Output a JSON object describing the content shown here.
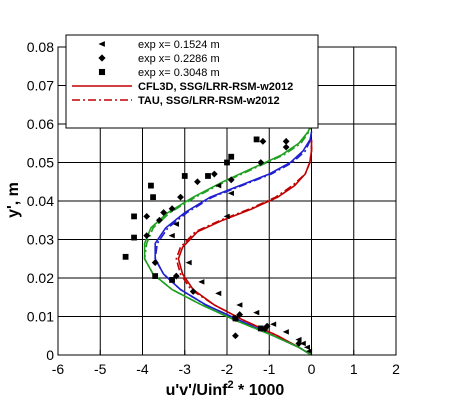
{
  "chart_data": {
    "type": "line",
    "xlabel": "u'v'/Uinf",
    "xlabel_sup": "2",
    "xlabel_suffix": " * 1000",
    "ylabel": "y', m",
    "xlim": [
      -6,
      2
    ],
    "ylim": [
      0,
      0.08
    ],
    "xticks": [
      "-6",
      "-5",
      "-4",
      "-3",
      "-2",
      "-1",
      "0",
      "1",
      "2"
    ],
    "yticks": [
      "0",
      "0.01",
      "0.02",
      "0.03",
      "0.04",
      "0.05",
      "0.06",
      "0.07",
      "0.08"
    ],
    "grid": true,
    "legend_position": "top",
    "experiments": [
      {
        "name": "exp x= 0.1524 m",
        "marker": "triangle-left",
        "points": [
          [
            -0.05,
            0.001
          ],
          [
            -0.1,
            0.002
          ],
          [
            -0.2,
            0.003
          ],
          [
            -0.3,
            0.004
          ],
          [
            -0.6,
            0.006
          ],
          [
            -0.9,
            0.008
          ],
          [
            -1.3,
            0.011
          ],
          [
            -1.7,
            0.013
          ],
          [
            -2.2,
            0.016
          ],
          [
            -2.6,
            0.019
          ],
          [
            -2.9,
            0.024
          ],
          [
            -3.3,
            0.031
          ],
          [
            -3.2,
            0.034
          ],
          [
            -2.0,
            0.036
          ],
          [
            -1.9,
            0.042
          ],
          [
            -2.2,
            0.044
          ]
        ]
      },
      {
        "name": "exp x= 0.2286 m",
        "marker": "diamond",
        "points": [
          [
            -0.3,
            0.003
          ],
          [
            -1.7,
            0.0105
          ],
          [
            -1.8,
            0.0095
          ],
          [
            -1.8,
            0.005
          ],
          [
            -1.05,
            0.0075
          ],
          [
            -1.1,
            0.0068
          ],
          [
            -2.8,
            0.0165
          ],
          [
            -3.2,
            0.0205
          ],
          [
            -3.7,
            0.024
          ],
          [
            -3.9,
            0.031
          ],
          [
            -3.9,
            0.036
          ],
          [
            -3.5,
            0.037
          ],
          [
            -3.6,
            0.035
          ],
          [
            -3.3,
            0.038
          ],
          [
            -3.1,
            0.041
          ],
          [
            -2.7,
            0.045
          ],
          [
            -1.9,
            0.0455
          ],
          [
            -2.3,
            0.047
          ],
          [
            -1.2,
            0.05
          ],
          [
            -0.6,
            0.054
          ],
          [
            -1.15,
            0.0555
          ],
          [
            -0.6,
            0.0555
          ]
        ]
      },
      {
        "name": "exp x= 0.3048 m",
        "marker": "square",
        "points": [
          [
            -1.8,
            0.0095
          ],
          [
            -1.2,
            0.0069
          ],
          [
            -3.3,
            0.0195
          ],
          [
            -3.7,
            0.0205
          ],
          [
            -4.4,
            0.0255
          ],
          [
            -4.2,
            0.0305
          ],
          [
            -4.2,
            0.036
          ],
          [
            -3.75,
            0.041
          ],
          [
            -3.8,
            0.044
          ],
          [
            -3.0,
            0.0465
          ],
          [
            -2.45,
            0.0465
          ],
          [
            -2.0,
            0.05
          ],
          [
            -1.9,
            0.0515
          ],
          [
            -1.3,
            0.056
          ]
        ]
      }
    ],
    "series": [
      {
        "name": "CFL3D, SSG/LRR-RSM-w2012",
        "color": "#c00000",
        "dash": "solid",
        "points": [
          [
            0,
            0
          ],
          [
            -0.3,
            0.002
          ],
          [
            -0.8,
            0.005
          ],
          [
            -1.6,
            0.009
          ],
          [
            -2.3,
            0.013
          ],
          [
            -2.8,
            0.017
          ],
          [
            -3.05,
            0.021
          ],
          [
            -3.15,
            0.025
          ],
          [
            -3.05,
            0.028
          ],
          [
            -2.7,
            0.032
          ],
          [
            -2.1,
            0.035
          ],
          [
            -1.4,
            0.038
          ],
          [
            -0.8,
            0.041
          ],
          [
            -0.4,
            0.044
          ],
          [
            -0.15,
            0.047
          ],
          [
            -0.04,
            0.05
          ],
          [
            0,
            0.053
          ],
          [
            0,
            0.056
          ]
        ]
      },
      {
        "name": "TAU, SSG/LRR-RSM-w2012",
        "color": "#c00000",
        "dash": "dashdot",
        "points": [
          [
            0,
            0
          ],
          [
            -0.3,
            0.002
          ],
          [
            -0.8,
            0.005
          ],
          [
            -1.6,
            0.009
          ],
          [
            -2.3,
            0.013
          ],
          [
            -2.85,
            0.017
          ],
          [
            -3.1,
            0.021
          ],
          [
            -3.2,
            0.025
          ],
          [
            -3.1,
            0.028
          ],
          [
            -2.75,
            0.032
          ],
          [
            -2.15,
            0.035
          ],
          [
            -1.45,
            0.038
          ],
          [
            -0.85,
            0.041
          ],
          [
            -0.45,
            0.044
          ],
          [
            -0.15,
            0.047
          ],
          [
            -0.04,
            0.05
          ],
          [
            0,
            0.053
          ],
          [
            0,
            0.056
          ]
        ]
      },
      {
        "color": "#2020d0",
        "dash": "solid",
        "points": [
          [
            0,
            0
          ],
          [
            -0.3,
            0.002
          ],
          [
            -0.9,
            0.005
          ],
          [
            -1.7,
            0.009
          ],
          [
            -2.5,
            0.013
          ],
          [
            -3.1,
            0.017
          ],
          [
            -3.5,
            0.021
          ],
          [
            -3.7,
            0.025
          ],
          [
            -3.7,
            0.029
          ],
          [
            -3.45,
            0.033
          ],
          [
            -3.0,
            0.037
          ],
          [
            -2.4,
            0.041
          ],
          [
            -1.7,
            0.044
          ],
          [
            -1.0,
            0.047
          ],
          [
            -0.5,
            0.05
          ],
          [
            -0.2,
            0.053
          ],
          [
            -0.03,
            0.056
          ],
          [
            0,
            0.058
          ]
        ]
      },
      {
        "color": "#2020d0",
        "dash": "dashdot",
        "points": [
          [
            0,
            0
          ],
          [
            -0.3,
            0.002
          ],
          [
            -0.9,
            0.005
          ],
          [
            -1.7,
            0.009
          ],
          [
            -2.5,
            0.013
          ],
          [
            -3.1,
            0.017
          ],
          [
            -3.5,
            0.021
          ],
          [
            -3.7,
            0.025
          ],
          [
            -3.65,
            0.029
          ],
          [
            -3.4,
            0.033
          ],
          [
            -2.95,
            0.037
          ],
          [
            -2.35,
            0.041
          ],
          [
            -1.65,
            0.044
          ],
          [
            -0.95,
            0.047
          ],
          [
            -0.45,
            0.05
          ],
          [
            -0.15,
            0.053
          ],
          [
            -0.02,
            0.056
          ],
          [
            0,
            0.058
          ]
        ]
      },
      {
        "color": "#20a020",
        "dash": "solid",
        "points": [
          [
            0,
            0
          ],
          [
            -0.3,
            0.002
          ],
          [
            -0.9,
            0.005
          ],
          [
            -1.8,
            0.009
          ],
          [
            -2.6,
            0.013
          ],
          [
            -3.3,
            0.017
          ],
          [
            -3.75,
            0.021
          ],
          [
            -3.95,
            0.025
          ],
          [
            -3.95,
            0.029
          ],
          [
            -3.8,
            0.033
          ],
          [
            -3.4,
            0.037
          ],
          [
            -2.8,
            0.041
          ],
          [
            -2.1,
            0.045
          ],
          [
            -1.3,
            0.049
          ],
          [
            -0.7,
            0.052
          ],
          [
            -0.3,
            0.055
          ],
          [
            -0.08,
            0.058
          ],
          [
            0,
            0.06
          ]
        ]
      },
      {
        "color": "#20a020",
        "dash": "dashdot",
        "points": [
          [
            0,
            0
          ],
          [
            -0.3,
            0.002
          ],
          [
            -0.9,
            0.005
          ],
          [
            -1.8,
            0.009
          ],
          [
            -2.6,
            0.013
          ],
          [
            -3.3,
            0.017
          ],
          [
            -3.75,
            0.021
          ],
          [
            -3.95,
            0.025
          ],
          [
            -3.9,
            0.029
          ],
          [
            -3.75,
            0.033
          ],
          [
            -3.35,
            0.037
          ],
          [
            -2.75,
            0.041
          ],
          [
            -2.05,
            0.045
          ],
          [
            -1.25,
            0.049
          ],
          [
            -0.65,
            0.052
          ],
          [
            -0.25,
            0.055
          ],
          [
            -0.06,
            0.058
          ],
          [
            0,
            0.06
          ]
        ]
      }
    ]
  }
}
